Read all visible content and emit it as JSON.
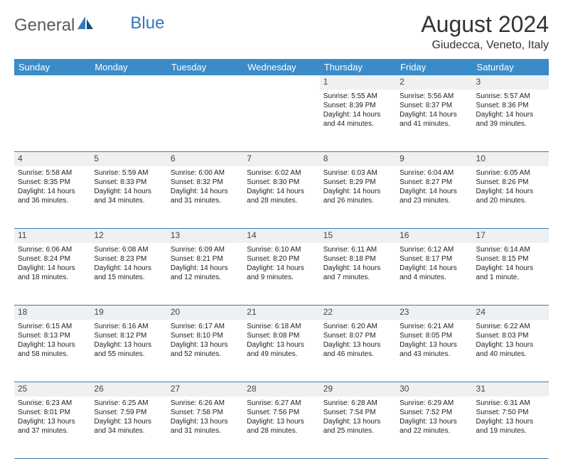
{
  "brand": {
    "part1": "General",
    "part2": "Blue"
  },
  "title": "August 2024",
  "location": "Giudecca, Veneto, Italy",
  "colors": {
    "header_bg": "#3b8bc9",
    "header_text": "#ffffff",
    "daynum_bg": "#eef0f2",
    "row_border": "#4179a8",
    "logo_gray": "#5a5a5a",
    "logo_blue": "#2f7ac0"
  },
  "weekdays": [
    "Sunday",
    "Monday",
    "Tuesday",
    "Wednesday",
    "Thursday",
    "Friday",
    "Saturday"
  ],
  "weeks": [
    [
      null,
      null,
      null,
      null,
      {
        "n": "1",
        "sr": "Sunrise: 5:55 AM",
        "ss": "Sunset: 8:39 PM",
        "dl1": "Daylight: 14 hours",
        "dl2": "and 44 minutes."
      },
      {
        "n": "2",
        "sr": "Sunrise: 5:56 AM",
        "ss": "Sunset: 8:37 PM",
        "dl1": "Daylight: 14 hours",
        "dl2": "and 41 minutes."
      },
      {
        "n": "3",
        "sr": "Sunrise: 5:57 AM",
        "ss": "Sunset: 8:36 PM",
        "dl1": "Daylight: 14 hours",
        "dl2": "and 39 minutes."
      }
    ],
    [
      {
        "n": "4",
        "sr": "Sunrise: 5:58 AM",
        "ss": "Sunset: 8:35 PM",
        "dl1": "Daylight: 14 hours",
        "dl2": "and 36 minutes."
      },
      {
        "n": "5",
        "sr": "Sunrise: 5:59 AM",
        "ss": "Sunset: 8:33 PM",
        "dl1": "Daylight: 14 hours",
        "dl2": "and 34 minutes."
      },
      {
        "n": "6",
        "sr": "Sunrise: 6:00 AM",
        "ss": "Sunset: 8:32 PM",
        "dl1": "Daylight: 14 hours",
        "dl2": "and 31 minutes."
      },
      {
        "n": "7",
        "sr": "Sunrise: 6:02 AM",
        "ss": "Sunset: 8:30 PM",
        "dl1": "Daylight: 14 hours",
        "dl2": "and 28 minutes."
      },
      {
        "n": "8",
        "sr": "Sunrise: 6:03 AM",
        "ss": "Sunset: 8:29 PM",
        "dl1": "Daylight: 14 hours",
        "dl2": "and 26 minutes."
      },
      {
        "n": "9",
        "sr": "Sunrise: 6:04 AM",
        "ss": "Sunset: 8:27 PM",
        "dl1": "Daylight: 14 hours",
        "dl2": "and 23 minutes."
      },
      {
        "n": "10",
        "sr": "Sunrise: 6:05 AM",
        "ss": "Sunset: 8:26 PM",
        "dl1": "Daylight: 14 hours",
        "dl2": "and 20 minutes."
      }
    ],
    [
      {
        "n": "11",
        "sr": "Sunrise: 6:06 AM",
        "ss": "Sunset: 8:24 PM",
        "dl1": "Daylight: 14 hours",
        "dl2": "and 18 minutes."
      },
      {
        "n": "12",
        "sr": "Sunrise: 6:08 AM",
        "ss": "Sunset: 8:23 PM",
        "dl1": "Daylight: 14 hours",
        "dl2": "and 15 minutes."
      },
      {
        "n": "13",
        "sr": "Sunrise: 6:09 AM",
        "ss": "Sunset: 8:21 PM",
        "dl1": "Daylight: 14 hours",
        "dl2": "and 12 minutes."
      },
      {
        "n": "14",
        "sr": "Sunrise: 6:10 AM",
        "ss": "Sunset: 8:20 PM",
        "dl1": "Daylight: 14 hours",
        "dl2": "and 9 minutes."
      },
      {
        "n": "15",
        "sr": "Sunrise: 6:11 AM",
        "ss": "Sunset: 8:18 PM",
        "dl1": "Daylight: 14 hours",
        "dl2": "and 7 minutes."
      },
      {
        "n": "16",
        "sr": "Sunrise: 6:12 AM",
        "ss": "Sunset: 8:17 PM",
        "dl1": "Daylight: 14 hours",
        "dl2": "and 4 minutes."
      },
      {
        "n": "17",
        "sr": "Sunrise: 6:14 AM",
        "ss": "Sunset: 8:15 PM",
        "dl1": "Daylight: 14 hours",
        "dl2": "and 1 minute."
      }
    ],
    [
      {
        "n": "18",
        "sr": "Sunrise: 6:15 AM",
        "ss": "Sunset: 8:13 PM",
        "dl1": "Daylight: 13 hours",
        "dl2": "and 58 minutes."
      },
      {
        "n": "19",
        "sr": "Sunrise: 6:16 AM",
        "ss": "Sunset: 8:12 PM",
        "dl1": "Daylight: 13 hours",
        "dl2": "and 55 minutes."
      },
      {
        "n": "20",
        "sr": "Sunrise: 6:17 AM",
        "ss": "Sunset: 8:10 PM",
        "dl1": "Daylight: 13 hours",
        "dl2": "and 52 minutes."
      },
      {
        "n": "21",
        "sr": "Sunrise: 6:18 AM",
        "ss": "Sunset: 8:08 PM",
        "dl1": "Daylight: 13 hours",
        "dl2": "and 49 minutes."
      },
      {
        "n": "22",
        "sr": "Sunrise: 6:20 AM",
        "ss": "Sunset: 8:07 PM",
        "dl1": "Daylight: 13 hours",
        "dl2": "and 46 minutes."
      },
      {
        "n": "23",
        "sr": "Sunrise: 6:21 AM",
        "ss": "Sunset: 8:05 PM",
        "dl1": "Daylight: 13 hours",
        "dl2": "and 43 minutes."
      },
      {
        "n": "24",
        "sr": "Sunrise: 6:22 AM",
        "ss": "Sunset: 8:03 PM",
        "dl1": "Daylight: 13 hours",
        "dl2": "and 40 minutes."
      }
    ],
    [
      {
        "n": "25",
        "sr": "Sunrise: 6:23 AM",
        "ss": "Sunset: 8:01 PM",
        "dl1": "Daylight: 13 hours",
        "dl2": "and 37 minutes."
      },
      {
        "n": "26",
        "sr": "Sunrise: 6:25 AM",
        "ss": "Sunset: 7:59 PM",
        "dl1": "Daylight: 13 hours",
        "dl2": "and 34 minutes."
      },
      {
        "n": "27",
        "sr": "Sunrise: 6:26 AM",
        "ss": "Sunset: 7:58 PM",
        "dl1": "Daylight: 13 hours",
        "dl2": "and 31 minutes."
      },
      {
        "n": "28",
        "sr": "Sunrise: 6:27 AM",
        "ss": "Sunset: 7:56 PM",
        "dl1": "Daylight: 13 hours",
        "dl2": "and 28 minutes."
      },
      {
        "n": "29",
        "sr": "Sunrise: 6:28 AM",
        "ss": "Sunset: 7:54 PM",
        "dl1": "Daylight: 13 hours",
        "dl2": "and 25 minutes."
      },
      {
        "n": "30",
        "sr": "Sunrise: 6:29 AM",
        "ss": "Sunset: 7:52 PM",
        "dl1": "Daylight: 13 hours",
        "dl2": "and 22 minutes."
      },
      {
        "n": "31",
        "sr": "Sunrise: 6:31 AM",
        "ss": "Sunset: 7:50 PM",
        "dl1": "Daylight: 13 hours",
        "dl2": "and 19 minutes."
      }
    ]
  ]
}
